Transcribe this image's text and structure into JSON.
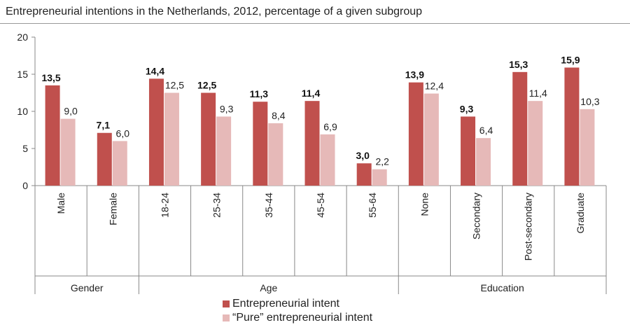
{
  "chart_data": {
    "type": "bar",
    "title": "Entrepreneurial intentions in the Netherlands, 2012, percentage of a given subgroup",
    "categories": [
      "Male",
      "Female",
      "18-24",
      "25-34",
      "35-44",
      "45-54",
      "55-64",
      "None",
      "Secondary",
      "Post-secondary",
      "Graduate"
    ],
    "groups": [
      {
        "name": "Gender",
        "categories": [
          "Male",
          "Female"
        ]
      },
      {
        "name": "Age",
        "categories": [
          "18-24",
          "25-34",
          "35-44",
          "45-54",
          "55-64"
        ]
      },
      {
        "name": "Education",
        "categories": [
          "None",
          "Secondary",
          "Post-secondary",
          "Graduate"
        ]
      }
    ],
    "series": [
      {
        "name": "Entrepreneurial intent",
        "color": "#c0504d",
        "values": [
          13.5,
          7.1,
          14.4,
          12.5,
          11.3,
          11.4,
          3.0,
          13.9,
          9.3,
          15.3,
          15.9
        ],
        "labels": [
          "13,5",
          "7,1",
          "14,4",
          "12,5",
          "11,3",
          "11,4",
          "3,0",
          "13,9",
          "9,3",
          "15,3",
          "15,9"
        ]
      },
      {
        "name": "“Pure” entrepreneurial intent",
        "color": "#e6b9b8",
        "values": [
          9.0,
          6.0,
          12.5,
          9.3,
          8.4,
          6.9,
          2.2,
          12.4,
          6.4,
          11.4,
          10.3
        ],
        "labels": [
          "9,0",
          "6,0",
          "12,5",
          "9,3",
          "8,4",
          "6,9",
          "2,2",
          "12,4",
          "6,4",
          "11,4",
          "10,3"
        ]
      }
    ],
    "ylim": [
      0,
      20
    ],
    "yticks": [
      0,
      5,
      10,
      15,
      20
    ],
    "xlabel": "",
    "ylabel": "",
    "grid": false,
    "legend_position": "bottom"
  }
}
